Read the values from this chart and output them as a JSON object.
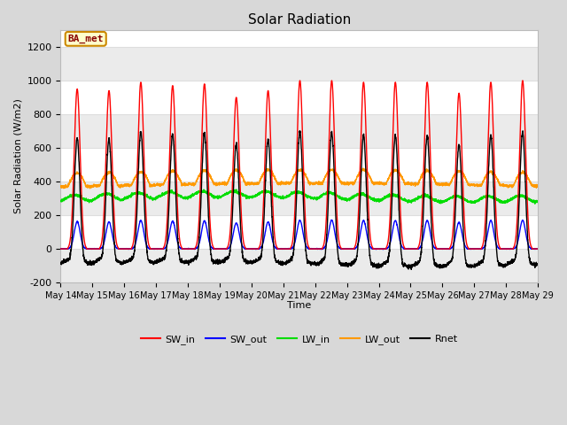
{
  "title": "Solar Radiation",
  "ylabel": "Solar Radiation (W/m2)",
  "xlabel": "Time",
  "ylim": [
    -200,
    1300
  ],
  "yticks": [
    -200,
    0,
    200,
    400,
    600,
    800,
    1000,
    1200
  ],
  "x_tick_labels": [
    "May 14",
    "May 15",
    "May 16",
    "May 17",
    "May 18",
    "May 19",
    "May 20",
    "May 21",
    "May 22",
    "May 23",
    "May 24",
    "May 25",
    "May 26",
    "May 27",
    "May 28",
    "May 29"
  ],
  "colors": {
    "SW_in": "#ff0000",
    "SW_out": "#0000ff",
    "LW_in": "#00dd00",
    "LW_out": "#ff9900",
    "Rnet": "#000000"
  },
  "annotation_text": "BA_met",
  "annotation_bg": "#ffffcc",
  "annotation_border": "#cc8800",
  "fig_bg": "#d8d8d8",
  "plot_bg": "#ffffff",
  "grid_color": "#dddddd",
  "alt_band_color": "#ebebeb",
  "linewidth": 1.0,
  "n_days": 15,
  "dt_hours": 0.1,
  "sw_peaks": [
    950,
    940,
    990,
    970,
    980,
    900,
    940,
    1000,
    1000,
    990,
    990,
    990,
    925,
    990,
    1000
  ],
  "figsize": [
    6.4,
    4.8
  ],
  "dpi": 100
}
